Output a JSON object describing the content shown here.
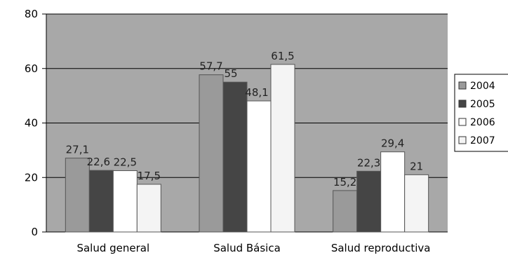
{
  "chart_data": {
    "type": "bar",
    "categories": [
      "Salud general",
      "Salud Básica",
      "Salud reproductiva"
    ],
    "series": [
      {
        "name": "2004",
        "values": [
          27.1,
          57.7,
          15.2
        ],
        "labels": [
          "27,1",
          "57,7",
          "15,2"
        ],
        "color": "#9a9a9a"
      },
      {
        "name": "2005",
        "values": [
          22.6,
          55,
          22.3
        ],
        "labels": [
          "22,6",
          "55",
          "22,3"
        ],
        "color": "#454545"
      },
      {
        "name": "2006",
        "values": [
          22.5,
          48.1,
          29.4
        ],
        "labels": [
          "22,5",
          "48,1",
          "29,4"
        ],
        "color": "#ffffff"
      },
      {
        "name": "2007",
        "values": [
          17.5,
          61.5,
          21
        ],
        "labels": [
          "17,5",
          "61,5",
          "21"
        ],
        "color": "#f4f4f4"
      }
    ],
    "yticks": [
      0,
      20,
      40,
      60,
      80
    ],
    "ylim": [
      0,
      80
    ],
    "title": "",
    "xlabel": "",
    "ylabel": "",
    "grid": true,
    "legend_position": "right",
    "plot_background": "#a8a8a8"
  }
}
